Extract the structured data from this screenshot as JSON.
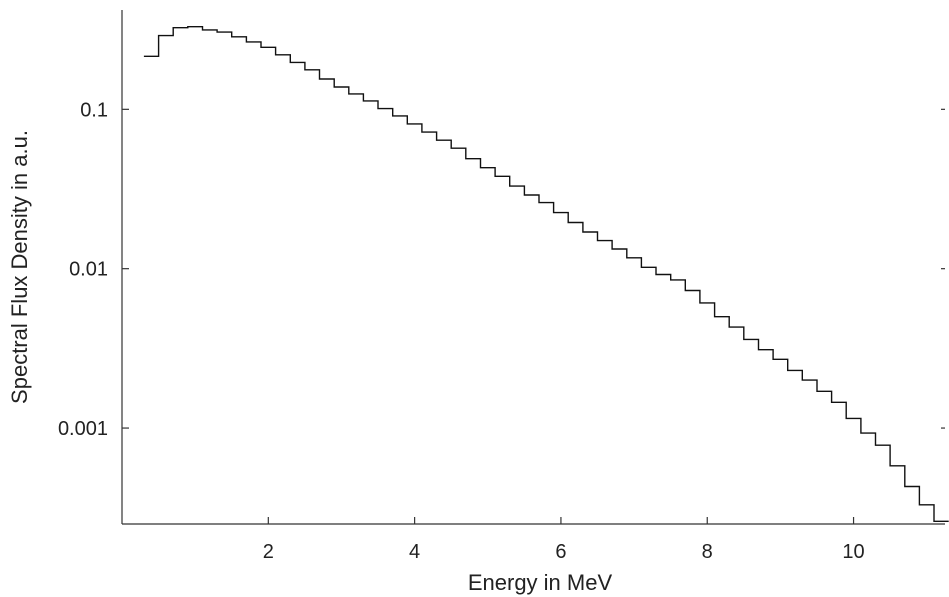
{
  "chart_data": {
    "type": "line",
    "style": "step",
    "xlabel": "Energy in MeV",
    "ylabel": "Spectral Flux Density in a.u.",
    "yscale": "log",
    "xlim": [
      0.0,
      11.25
    ],
    "ylim": [
      0.00025,
      0.42
    ],
    "x_ticks": [
      2,
      4,
      6,
      8,
      10
    ],
    "x_tick_labels": [
      "2",
      "4",
      "6",
      "8",
      "10"
    ],
    "y_ticks": [
      0.001,
      0.01,
      0.1
    ],
    "y_tick_labels": [
      "0.001",
      "0.01",
      "0.1"
    ],
    "grid": false,
    "series": [
      {
        "bins": [
          0.3,
          0.5,
          0.7,
          0.9,
          1.1,
          1.3,
          1.5,
          1.7,
          1.9,
          2.1,
          2.3,
          2.5,
          2.7,
          2.9,
          3.1,
          3.3,
          3.5,
          3.7,
          3.9,
          4.1,
          4.3,
          4.5,
          4.7,
          4.9,
          5.1,
          5.3,
          5.5,
          5.7,
          5.9,
          6.1,
          6.3,
          6.5,
          6.7,
          6.9,
          7.1,
          7.3,
          7.5,
          7.7,
          7.9,
          8.1,
          8.3,
          8.5,
          8.7,
          8.9,
          9.1,
          9.3,
          9.5,
          9.7,
          9.9,
          10.1,
          10.3,
          10.5,
          10.7,
          10.9,
          11.1,
          11.3
        ],
        "values": [
          0.215,
          0.29,
          0.325,
          0.33,
          0.315,
          0.305,
          0.285,
          0.265,
          0.245,
          0.22,
          0.197,
          0.177,
          0.155,
          0.138,
          0.125,
          0.113,
          0.101,
          0.091,
          0.081,
          0.072,
          0.064,
          0.057,
          0.049,
          0.043,
          0.038,
          0.033,
          0.029,
          0.026,
          0.0225,
          0.0195,
          0.017,
          0.015,
          0.0133,
          0.0117,
          0.0102,
          0.0092,
          0.0085,
          0.0073,
          0.0061,
          0.005,
          0.0043,
          0.0036,
          0.0031,
          0.0027,
          0.0023,
          0.002,
          0.0017,
          0.00145,
          0.00115,
          0.00093,
          0.00078,
          0.00058,
          0.00043,
          0.00033,
          0.00026
        ]
      }
    ]
  }
}
